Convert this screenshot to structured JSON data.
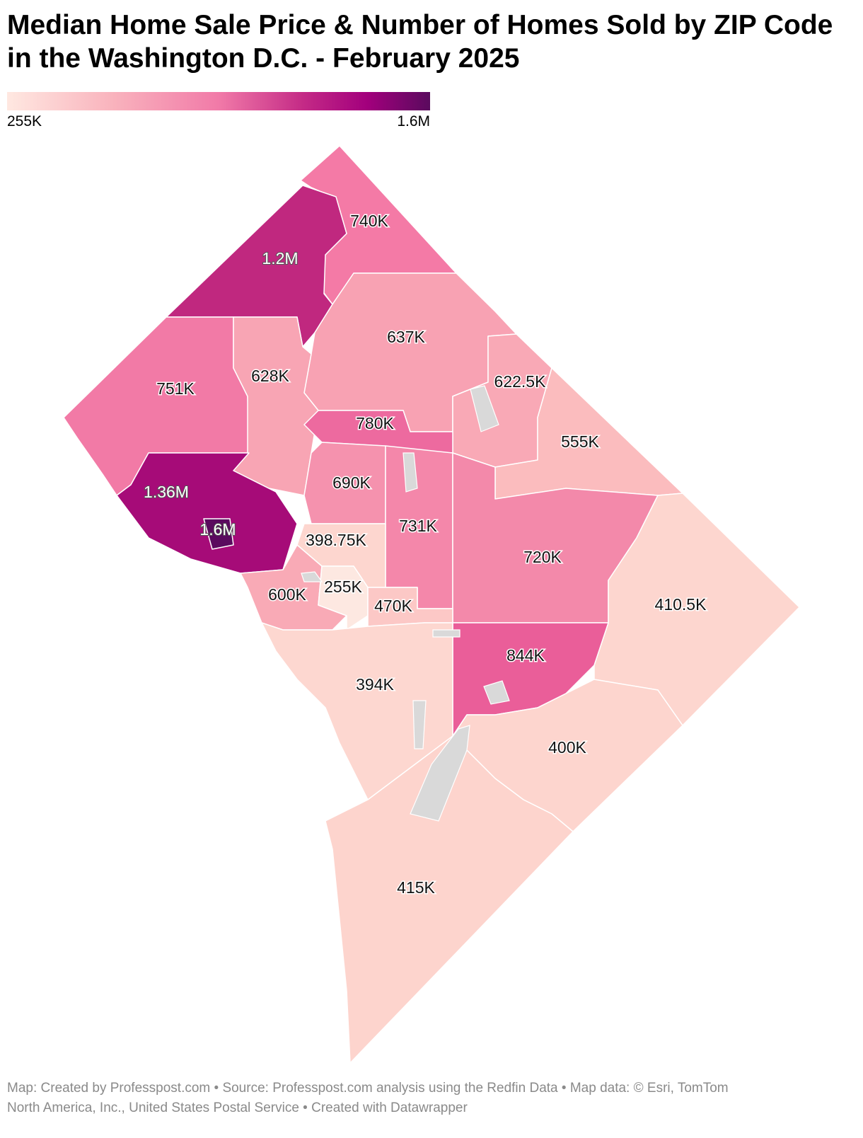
{
  "title": "Median Home Sale Price & Number of Homes Sold by ZIP Code in the Washington D.C. - February 2025",
  "legend": {
    "min_label": "255K",
    "max_label": "1.6M",
    "min_color": "#ffe8e1",
    "max_color": "#5a0a5e"
  },
  "regions": [
    {
      "key": "nw_top",
      "label": "740K",
      "value": 740000,
      "color": "#f47aa6"
    },
    {
      "key": "chevy_chase",
      "label": "1.2M",
      "value": 1200000,
      "color": "#c0287f"
    },
    {
      "key": "west",
      "label": "751K",
      "value": 751000,
      "color": "#f27aa6"
    },
    {
      "key": "center_north",
      "label": "637K",
      "value": 637000,
      "color": "#f8a2b3"
    },
    {
      "key": "cleveland",
      "label": "628K",
      "value": 628000,
      "color": "#f8a5b4"
    },
    {
      "key": "north_east",
      "label": "622.5K",
      "value": 622500,
      "color": "#f9a9b6"
    },
    {
      "key": "ne_edge",
      "label": "555K",
      "value": 555000,
      "color": "#fbbcbe"
    },
    {
      "key": "columbia",
      "label": "780K",
      "value": 780000,
      "color": "#ed6a9f"
    },
    {
      "key": "center",
      "label": "690K",
      "value": 690000,
      "color": "#f592ae"
    },
    {
      "key": "shaw",
      "label": "731K",
      "value": 731000,
      "color": "#f487aa"
    },
    {
      "key": "northeast",
      "label": "720K",
      "value": 720000,
      "color": "#f389aa"
    },
    {
      "key": "east",
      "label": "410.5K",
      "value": 410500,
      "color": "#fdd6cf"
    },
    {
      "key": "georgetown_w",
      "label": "1.36M",
      "value": 1360000,
      "color": "#a60b78"
    },
    {
      "key": "georgetown",
      "label": "1.6M",
      "value": 1600000,
      "color": "#5a0a5e"
    },
    {
      "key": "dupont",
      "label": "398.75K",
      "value": 398750,
      "color": "#fdd6cf"
    },
    {
      "key": "foggy",
      "label": "600K",
      "value": 600000,
      "color": "#f9aab6"
    },
    {
      "key": "downtown",
      "label": "255K",
      "value": 255000,
      "color": "#fde8e1"
    },
    {
      "key": "penn",
      "label": "470K",
      "value": 470000,
      "color": "#fcc8c6"
    },
    {
      "key": "capitol_hill",
      "label": "844K",
      "value": 844000,
      "color": "#ea5e99"
    },
    {
      "key": "southwest",
      "label": "394K",
      "value": 394000,
      "color": "#fdd7d0"
    },
    {
      "key": "anacostia",
      "label": "400K",
      "value": 400000,
      "color": "#fdd5ce"
    },
    {
      "key": "south",
      "label": "415K",
      "value": 415000,
      "color": "#fdd4cd"
    }
  ],
  "footer": {
    "line1": "Map: Created by Professpost.com  • Source: Professpost.com analysis using the Redfin Data  • Map data: © Esri, TomTom",
    "line2": "North America, Inc., United States Postal Service  • Created with Datawrapper"
  }
}
